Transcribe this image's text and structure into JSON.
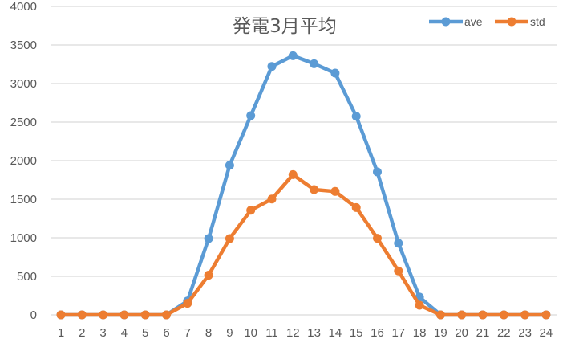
{
  "chart_data": {
    "type": "line",
    "title": "発電3月平均",
    "xlabel": "",
    "ylabel": "",
    "x": [
      1,
      2,
      3,
      4,
      5,
      6,
      7,
      8,
      9,
      10,
      11,
      12,
      13,
      14,
      15,
      16,
      17,
      18,
      19,
      20,
      21,
      22,
      23,
      24
    ],
    "ylim": [
      0,
      4000
    ],
    "yticks": [
      0,
      500,
      1000,
      1500,
      2000,
      2500,
      3000,
      3500,
      4000
    ],
    "grid": true,
    "legend_position": "top-right",
    "series": [
      {
        "name": "ave",
        "color": "#5B9BD5",
        "values": [
          0,
          0,
          0,
          0,
          0,
          0,
          180,
          990,
          1940,
          2583,
          3222,
          3361,
          3257,
          3135,
          2576,
          1854,
          930,
          230,
          0,
          0,
          0,
          0,
          0,
          0
        ]
      },
      {
        "name": "std",
        "color": "#ED7D31",
        "values": [
          0,
          0,
          0,
          0,
          0,
          0,
          150,
          515,
          990,
          1357,
          1503,
          1819,
          1625,
          1601,
          1392,
          993,
          570,
          125,
          0,
          0,
          0,
          0,
          0,
          0
        ]
      }
    ]
  },
  "colors": {
    "grid": "#D9D9D9",
    "text": "#595959"
  }
}
